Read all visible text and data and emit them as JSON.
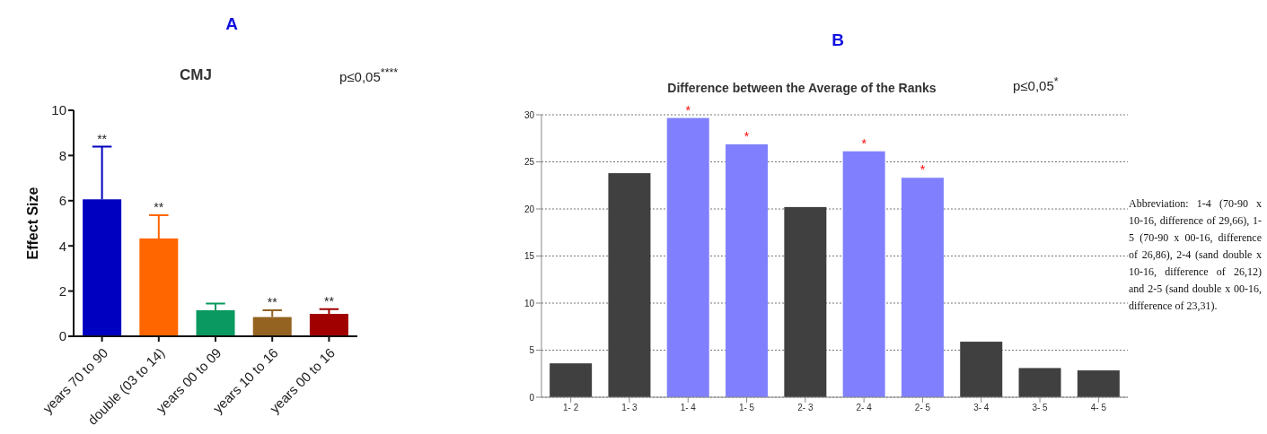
{
  "chart_data": [
    {
      "type": "bar",
      "title": "A",
      "subtitle": "CMJ",
      "ylabel": "Effect Size",
      "categories": [
        "years 70 to 90",
        "double (03 to 14)",
        "years 00 to 09",
        "years 10 to 16",
        "years 00 to 16"
      ],
      "values": [
        6.06,
        4.33,
        1.15,
        0.85,
        0.99
      ],
      "errors": [
        2.33,
        1.03,
        0.3,
        0.3,
        0.21
      ],
      "colors": [
        "#0000c0",
        "#ff6600",
        "#0a9960",
        "#946321",
        "#a00000"
      ],
      "ylim": [
        0,
        10
      ],
      "yticks": [
        0,
        2,
        4,
        6,
        8,
        10
      ],
      "grid": false,
      "annotations": [
        "p≤0,05$^{****}$",
        {
          "text": "**",
          "x": "years 70 to 90",
          "y": 8.39
        },
        {
          "text": "**",
          "x": "double (03 to 14)",
          "y": 5.36
        },
        {
          "text": "**",
          "x": "years 10 to 16",
          "y": 1.15
        },
        {
          "text": "**",
          "x": "years 00 to 16",
          "y": 1.2
        }
      ]
    },
    {
      "type": "bar",
      "title": "B",
      "subtitle": "Difference between the Average of the Ranks",
      "categories": [
        "1- 2",
        "1- 3",
        "1- 4",
        "1- 5",
        "2- 3",
        "2- 4",
        "2- 5",
        "3- 4",
        "3- 5",
        "4- 5"
      ],
      "values": [
        3.6,
        23.8,
        29.66,
        26.86,
        20.2,
        26.12,
        23.31,
        5.9,
        3.1,
        2.85
      ],
      "colors": [
        "#404040",
        "#404040",
        "#8080ff",
        "#8080ff",
        "#404040",
        "#8080ff",
        "#8080ff",
        "#404040",
        "#404040",
        "#404040"
      ],
      "ylim": [
        0,
        30
      ],
      "yticks": [
        0,
        5,
        10,
        15,
        20,
        25,
        30
      ],
      "grid": "y",
      "annotations": [
        "p≤0,05$^{*}$",
        "Abbreviation: 1-4 (70-90 x 10-16, difference of 29,66), 1-5 (70-90 x 00-16, difference of 26,86), 2-4 (sand double x 10-16, difference of 26,12) and 2-5 (sand double x 00-16, difference of 23,31).",
        {
          "text": "*",
          "x": "1- 4",
          "y": 29.66
        },
        {
          "text": "*",
          "x": "1- 5",
          "y": 26.86
        },
        {
          "text": "*",
          "x": "2- 4",
          "y": 26.12
        },
        {
          "text": "*",
          "x": "2- 5",
          "y": 23.31
        }
      ]
    }
  ]
}
